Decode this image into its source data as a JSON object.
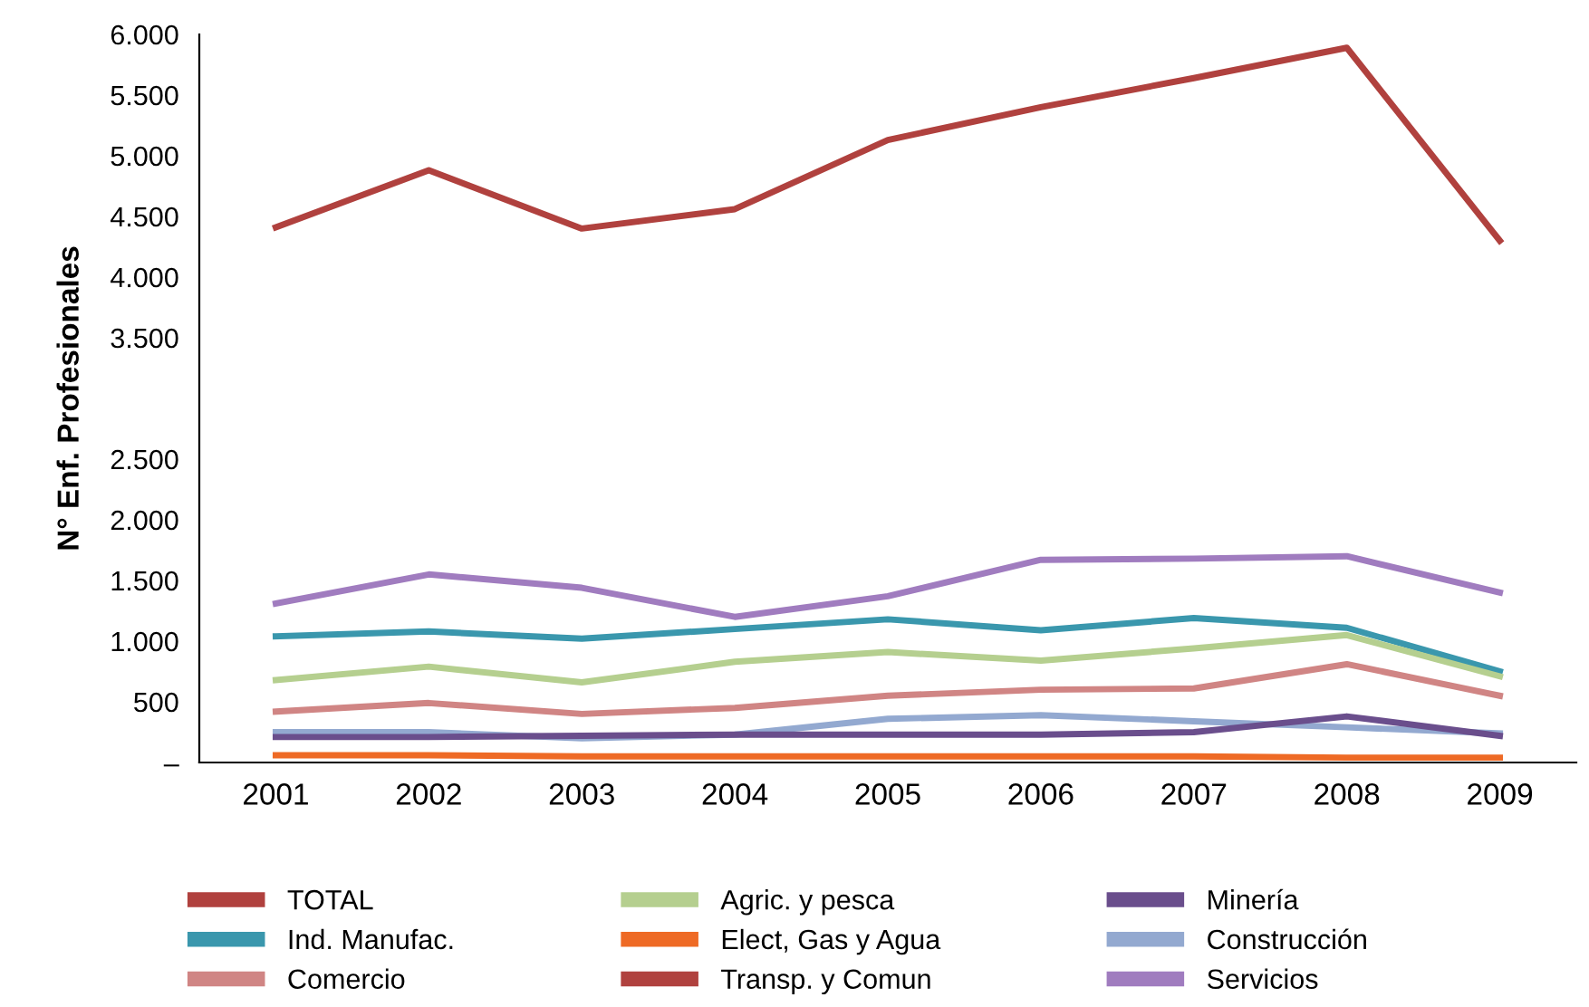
{
  "chart_data": {
    "type": "line",
    "ylabel": "N° Enf. Profesionales",
    "categories": [
      "2001",
      "2002",
      "2003",
      "2004",
      "2005",
      "2006",
      "2007",
      "2008",
      "2009"
    ],
    "ylim": [
      0,
      6000
    ],
    "yticks": [
      {
        "value": 0,
        "label": "–"
      },
      500,
      {
        "value": 1000,
        "label": "1.000"
      },
      {
        "value": 1500,
        "label": "1.500"
      },
      {
        "value": 2000,
        "label": "2.000"
      },
      {
        "value": 2500,
        "label": "2.500"
      },
      {
        "value": 3500,
        "label": "3.500"
      },
      {
        "value": 4000,
        "label": "4.000"
      },
      {
        "value": 4500,
        "label": "4.500"
      },
      {
        "value": 5000,
        "label": "5.000"
      },
      {
        "value": 5500,
        "label": "5.500"
      },
      {
        "value": 6000,
        "label": "6.000"
      }
    ],
    "grid": false,
    "legend": "bottom",
    "marker": "none",
    "line_style": "solid",
    "series": [
      {
        "name": "TOTAL",
        "color": "#b0413e",
        "values": [
          4410,
          4880,
          4400,
          4560,
          5130,
          5400,
          5640,
          5890,
          4300
        ]
      },
      {
        "name": "Agric. y pesca",
        "color": "#b5cf8f",
        "values": [
          680,
          790,
          660,
          830,
          910,
          840,
          940,
          1050,
          710
        ]
      },
      {
        "name": "Minería",
        "color": "#6a4e8c",
        "values": [
          210,
          210,
          220,
          230,
          230,
          230,
          250,
          380,
          220
        ]
      },
      {
        "name": "Ind. Manufac.",
        "color": "#3a97ad",
        "values": [
          1040,
          1080,
          1020,
          1100,
          1180,
          1090,
          1190,
          1110,
          750
        ]
      },
      {
        "name": "Elect, Gas y Agua",
        "color": "#ee6a25",
        "values": [
          60,
          60,
          50,
          50,
          50,
          50,
          50,
          40,
          40
        ]
      },
      {
        "name": "Construcción",
        "color": "#93a9d0",
        "values": [
          250,
          250,
          200,
          230,
          360,
          390,
          340,
          290,
          240
        ]
      },
      {
        "name": "Comercio",
        "color": "#d08584",
        "values": [
          420,
          490,
          400,
          450,
          550,
          600,
          610,
          810,
          550
        ]
      },
      {
        "name": "Transp. y Comun",
        "color": "#b0413e",
        "values": [
          null,
          null,
          null,
          null,
          null,
          null,
          null,
          null,
          null
        ]
      },
      {
        "name": "Servicios",
        "color": "#a07cbf",
        "values": [
          1310,
          1550,
          1440,
          1200,
          1370,
          1670,
          1680,
          1700,
          1400
        ]
      }
    ]
  }
}
